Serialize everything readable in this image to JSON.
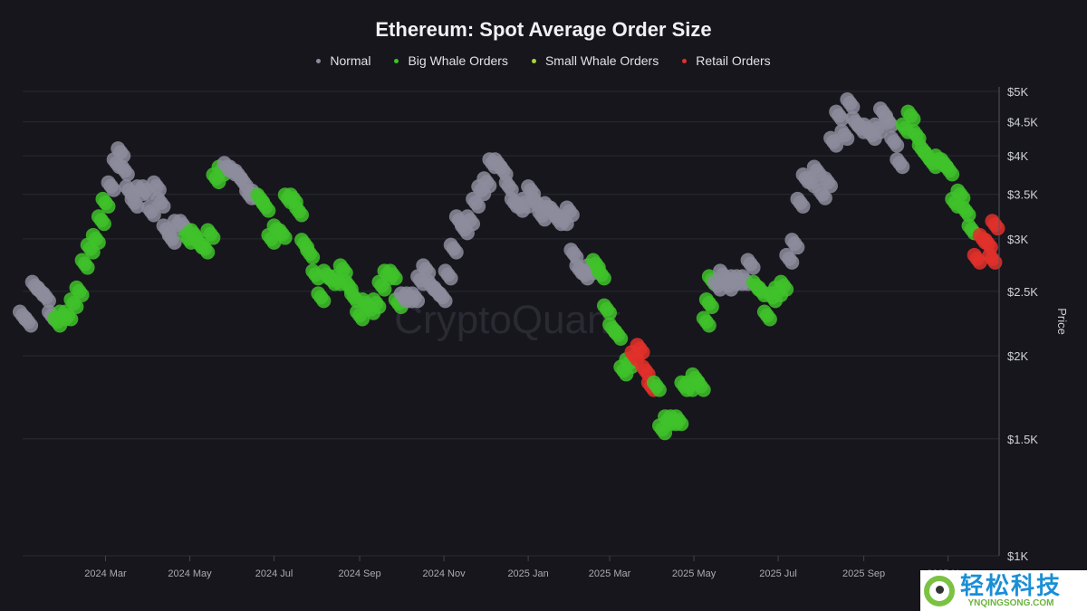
{
  "chart_data": {
    "type": "scatter",
    "title": "Ethereum: Spot Average Order Size",
    "ylabel": "Price",
    "xlabel": "",
    "y_scale": "log",
    "ylim": [
      1000,
      5000
    ],
    "xlim": [
      "2024-01-01",
      "2025-12-06"
    ],
    "grid": true,
    "legend_placement": "top-center",
    "y_ticks": [
      {
        "v": 1000,
        "label": "$1K"
      },
      {
        "v": 1500,
        "label": "$1.5K"
      },
      {
        "v": 2000,
        "label": "$2K"
      },
      {
        "v": 2500,
        "label": "$2.5K"
      },
      {
        "v": 3000,
        "label": "$3K"
      },
      {
        "v": 3500,
        "label": "$3.5K"
      },
      {
        "v": 4000,
        "label": "$4K"
      },
      {
        "v": 4500,
        "label": "$4.5K"
      },
      {
        "v": 5000,
        "label": "$5K"
      }
    ],
    "x_ticks": [
      {
        "d": "2024-03-01",
        "label": "2024 Mar"
      },
      {
        "d": "2024-05-01",
        "label": "2024 May"
      },
      {
        "d": "2024-07-01",
        "label": "2024 Jul"
      },
      {
        "d": "2024-09-01",
        "label": "2024 Sep"
      },
      {
        "d": "2024-11-01",
        "label": "2024 Nov"
      },
      {
        "d": "2025-01-01",
        "label": "2025 Jan"
      },
      {
        "d": "2025-03-01",
        "label": "2025 Mar"
      },
      {
        "d": "2025-05-01",
        "label": "2025 May"
      },
      {
        "d": "2025-07-01",
        "label": "2025 Jul"
      },
      {
        "d": "2025-09-01",
        "label": "2025 Sep"
      },
      {
        "d": "2025-11-01",
        "label": "2025 Nov"
      }
    ],
    "series": [
      {
        "key": "N",
        "name": "Normal",
        "color": "#8c8c9c"
      },
      {
        "key": "B",
        "name": "Big Whale Orders",
        "color": "#3fc22a"
      },
      {
        "key": "S",
        "name": "Small Whale Orders",
        "color": "#a8d63a"
      },
      {
        "key": "R",
        "name": "Retail Orders",
        "color": "#e2302a"
      }
    ],
    "points": [
      [
        "2024-01-01",
        2300,
        "N"
      ],
      [
        "2024-01-05",
        2250,
        "N"
      ],
      [
        "2024-01-10",
        2550,
        "N"
      ],
      [
        "2024-01-14",
        2500,
        "N"
      ],
      [
        "2024-01-18",
        2450,
        "N"
      ],
      [
        "2024-01-22",
        2300,
        "N"
      ],
      [
        "2024-01-26",
        2250,
        "B"
      ],
      [
        "2024-01-30",
        2300,
        "B"
      ],
      [
        "2024-02-03",
        2300,
        "B"
      ],
      [
        "2024-02-07",
        2400,
        "B"
      ],
      [
        "2024-02-11",
        2500,
        "B"
      ],
      [
        "2024-02-15",
        2750,
        "B"
      ],
      [
        "2024-02-19",
        2900,
        "B"
      ],
      [
        "2024-02-23",
        3000,
        "B"
      ],
      [
        "2024-02-27",
        3200,
        "B"
      ],
      [
        "2024-03-01",
        3400,
        "B"
      ],
      [
        "2024-03-05",
        3600,
        "N"
      ],
      [
        "2024-03-09",
        3900,
        "N"
      ],
      [
        "2024-03-12",
        4050,
        "N"
      ],
      [
        "2024-03-15",
        3800,
        "N"
      ],
      [
        "2024-03-18",
        3550,
        "N"
      ],
      [
        "2024-03-22",
        3400,
        "N"
      ],
      [
        "2024-03-26",
        3550,
        "N"
      ],
      [
        "2024-03-30",
        3550,
        "N"
      ],
      [
        "2024-04-03",
        3300,
        "N"
      ],
      [
        "2024-04-07",
        3600,
        "N"
      ],
      [
        "2024-04-10",
        3400,
        "N"
      ],
      [
        "2024-04-14",
        3100,
        "N"
      ],
      [
        "2024-04-18",
        3000,
        "N"
      ],
      [
        "2024-04-22",
        3150,
        "N"
      ],
      [
        "2024-04-26",
        3150,
        "N"
      ],
      [
        "2024-04-30",
        3000,
        "B"
      ],
      [
        "2024-05-04",
        3050,
        "B"
      ],
      [
        "2024-05-08",
        2950,
        "B"
      ],
      [
        "2024-05-12",
        2900,
        "B"
      ],
      [
        "2024-05-16",
        3050,
        "B"
      ],
      [
        "2024-05-20",
        3700,
        "B"
      ],
      [
        "2024-05-24",
        3800,
        "B"
      ],
      [
        "2024-05-28",
        3850,
        "N"
      ],
      [
        "2024-06-01",
        3800,
        "N"
      ],
      [
        "2024-06-05",
        3750,
        "N"
      ],
      [
        "2024-06-09",
        3650,
        "N"
      ],
      [
        "2024-06-13",
        3500,
        "N"
      ],
      [
        "2024-06-17",
        3500,
        "N"
      ],
      [
        "2024-06-21",
        3450,
        "B"
      ],
      [
        "2024-06-25",
        3350,
        "B"
      ],
      [
        "2024-06-29",
        3000,
        "B"
      ],
      [
        "2024-07-03",
        3100,
        "B"
      ],
      [
        "2024-07-07",
        3050,
        "B"
      ],
      [
        "2024-07-11",
        3450,
        "B"
      ],
      [
        "2024-07-15",
        3450,
        "B"
      ],
      [
        "2024-07-19",
        3300,
        "B"
      ],
      [
        "2024-07-23",
        2950,
        "B"
      ],
      [
        "2024-07-27",
        2850,
        "B"
      ],
      [
        "2024-07-31",
        2650,
        "B"
      ],
      [
        "2024-08-04",
        2450,
        "B"
      ],
      [
        "2024-08-08",
        2650,
        "B"
      ],
      [
        "2024-08-12",
        2600,
        "B"
      ],
      [
        "2024-08-16",
        2600,
        "B"
      ],
      [
        "2024-08-20",
        2700,
        "B"
      ],
      [
        "2024-08-24",
        2550,
        "B"
      ],
      [
        "2024-08-28",
        2450,
        "B"
      ],
      [
        "2024-09-01",
        2300,
        "B"
      ],
      [
        "2024-09-05",
        2400,
        "B"
      ],
      [
        "2024-09-09",
        2350,
        "B"
      ],
      [
        "2024-09-13",
        2400,
        "B"
      ],
      [
        "2024-09-17",
        2550,
        "B"
      ],
      [
        "2024-09-21",
        2650,
        "B"
      ],
      [
        "2024-09-25",
        2650,
        "B"
      ],
      [
        "2024-09-29",
        2400,
        "B"
      ],
      [
        "2024-10-03",
        2450,
        "N"
      ],
      [
        "2024-10-07",
        2450,
        "N"
      ],
      [
        "2024-10-11",
        2450,
        "N"
      ],
      [
        "2024-10-15",
        2600,
        "N"
      ],
      [
        "2024-10-19",
        2700,
        "N"
      ],
      [
        "2024-10-23",
        2550,
        "N"
      ],
      [
        "2024-10-27",
        2500,
        "N"
      ],
      [
        "2024-10-31",
        2450,
        "N"
      ],
      [
        "2024-11-04",
        2650,
        "N"
      ],
      [
        "2024-11-08",
        2900,
        "N"
      ],
      [
        "2024-11-12",
        3200,
        "N"
      ],
      [
        "2024-11-16",
        3100,
        "N"
      ],
      [
        "2024-11-20",
        3200,
        "N"
      ],
      [
        "2024-11-24",
        3400,
        "N"
      ],
      [
        "2024-11-28",
        3550,
        "N"
      ],
      [
        "2024-12-02",
        3650,
        "N"
      ],
      [
        "2024-12-06",
        3900,
        "N"
      ],
      [
        "2024-12-10",
        3900,
        "N"
      ],
      [
        "2024-12-14",
        3800,
        "N"
      ],
      [
        "2024-12-18",
        3600,
        "N"
      ],
      [
        "2024-12-22",
        3400,
        "N"
      ],
      [
        "2024-12-26",
        3350,
        "N"
      ],
      [
        "2024-12-30",
        3400,
        "N"
      ],
      [
        "2025-01-03",
        3550,
        "N"
      ],
      [
        "2025-01-07",
        3400,
        "N"
      ],
      [
        "2025-01-11",
        3250,
        "N"
      ],
      [
        "2025-01-15",
        3350,
        "N"
      ],
      [
        "2025-01-19",
        3300,
        "N"
      ],
      [
        "2025-01-23",
        3200,
        "N"
      ],
      [
        "2025-01-27",
        3200,
        "N"
      ],
      [
        "2025-01-31",
        3300,
        "N"
      ],
      [
        "2025-02-03",
        2850,
        "N"
      ],
      [
        "2025-02-07",
        2700,
        "N"
      ],
      [
        "2025-02-11",
        2650,
        "N"
      ],
      [
        "2025-02-15",
        2700,
        "N"
      ],
      [
        "2025-02-19",
        2750,
        "B"
      ],
      [
        "2025-02-23",
        2650,
        "B"
      ],
      [
        "2025-02-27",
        2350,
        "B"
      ],
      [
        "2025-03-03",
        2200,
        "B"
      ],
      [
        "2025-03-07",
        2150,
        "B"
      ],
      [
        "2025-03-11",
        1900,
        "B"
      ],
      [
        "2025-03-15",
        1950,
        "B"
      ],
      [
        "2025-03-19",
        2000,
        "R"
      ],
      [
        "2025-03-23",
        2050,
        "R"
      ],
      [
        "2025-03-27",
        1900,
        "R"
      ],
      [
        "2025-03-31",
        1800,
        "R"
      ],
      [
        "2025-04-04",
        1800,
        "B"
      ],
      [
        "2025-04-08",
        1550,
        "B"
      ],
      [
        "2025-04-12",
        1600,
        "B"
      ],
      [
        "2025-04-16",
        1600,
        "B"
      ],
      [
        "2025-04-20",
        1600,
        "B"
      ],
      [
        "2025-04-24",
        1800,
        "B"
      ],
      [
        "2025-04-28",
        1800,
        "B"
      ],
      [
        "2025-05-02",
        1850,
        "B"
      ],
      [
        "2025-05-06",
        1800,
        "B"
      ],
      [
        "2025-05-10",
        2250,
        "B"
      ],
      [
        "2025-05-12",
        2400,
        "B"
      ],
      [
        "2025-05-14",
        2600,
        "B"
      ],
      [
        "2025-05-18",
        2550,
        "N"
      ],
      [
        "2025-05-22",
        2650,
        "N"
      ],
      [
        "2025-05-26",
        2550,
        "N"
      ],
      [
        "2025-05-30",
        2600,
        "N"
      ],
      [
        "2025-06-03",
        2600,
        "N"
      ],
      [
        "2025-06-07",
        2600,
        "N"
      ],
      [
        "2025-06-11",
        2750,
        "N"
      ],
      [
        "2025-06-15",
        2550,
        "B"
      ],
      [
        "2025-06-19",
        2500,
        "B"
      ],
      [
        "2025-06-23",
        2300,
        "B"
      ],
      [
        "2025-06-27",
        2450,
        "B"
      ],
      [
        "2025-07-01",
        2500,
        "B"
      ],
      [
        "2025-07-05",
        2550,
        "B"
      ],
      [
        "2025-07-09",
        2800,
        "N"
      ],
      [
        "2025-07-13",
        2950,
        "N"
      ],
      [
        "2025-07-17",
        3400,
        "N"
      ],
      [
        "2025-07-21",
        3700,
        "N"
      ],
      [
        "2025-07-25",
        3650,
        "N"
      ],
      [
        "2025-07-29",
        3800,
        "N"
      ],
      [
        "2025-08-02",
        3500,
        "N"
      ],
      [
        "2025-08-06",
        3650,
        "N"
      ],
      [
        "2025-08-10",
        4200,
        "N"
      ],
      [
        "2025-08-14",
        4600,
        "N"
      ],
      [
        "2025-08-18",
        4300,
        "N"
      ],
      [
        "2025-08-22",
        4800,
        "N"
      ],
      [
        "2025-08-26",
        4500,
        "N"
      ],
      [
        "2025-08-30",
        4400,
        "N"
      ],
      [
        "2025-09-03",
        4400,
        "N"
      ],
      [
        "2025-09-07",
        4300,
        "N"
      ],
      [
        "2025-09-11",
        4400,
        "N"
      ],
      [
        "2025-09-15",
        4650,
        "N"
      ],
      [
        "2025-09-19",
        4500,
        "N"
      ],
      [
        "2025-09-23",
        4200,
        "N"
      ],
      [
        "2025-09-27",
        3900,
        "N"
      ],
      [
        "2025-10-01",
        4400,
        "B"
      ],
      [
        "2025-10-05",
        4600,
        "B"
      ],
      [
        "2025-10-09",
        4300,
        "B"
      ],
      [
        "2025-10-13",
        4100,
        "B"
      ],
      [
        "2025-10-17",
        4000,
        "B"
      ],
      [
        "2025-10-21",
        3900,
        "B"
      ],
      [
        "2025-10-25",
        3950,
        "B"
      ],
      [
        "2025-10-29",
        3900,
        "B"
      ],
      [
        "2025-11-02",
        3800,
        "B"
      ],
      [
        "2025-11-06",
        3400,
        "B"
      ],
      [
        "2025-11-10",
        3500,
        "B"
      ],
      [
        "2025-11-14",
        3300,
        "B"
      ],
      [
        "2025-11-18",
        3100,
        "B"
      ],
      [
        "2025-11-22",
        2800,
        "R"
      ],
      [
        "2025-11-26",
        3000,
        "R"
      ],
      [
        "2025-11-30",
        2950,
        "R"
      ],
      [
        "2025-12-03",
        2800,
        "R"
      ],
      [
        "2025-12-05",
        3150,
        "R"
      ]
    ]
  },
  "watermark": "CryptoQuant",
  "badge": {
    "name": "轻松科技",
    "url": "YNQINGSONG.COM"
  }
}
